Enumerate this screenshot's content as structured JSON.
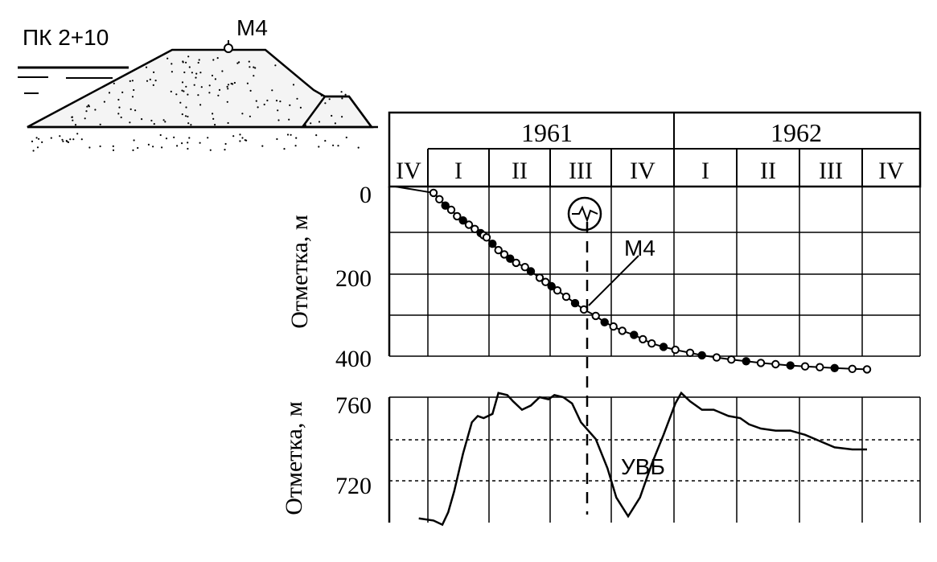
{
  "sketch": {
    "station_label": "ПК 2+10",
    "mark_label": "M4"
  },
  "chart_data": [
    {
      "type": "scatter",
      "title": "",
      "xlabel": "",
      "ylabel": "Отметка, м",
      "years": [
        "1961",
        "1962"
      ],
      "quarters": [
        "IV",
        "I",
        "II",
        "III",
        "IV",
        "I",
        "II",
        "III",
        "IV"
      ],
      "ylim": [
        400,
        0
      ],
      "yticks": [
        "0",
        "200",
        "400"
      ],
      "grid": true,
      "annotation": "M4",
      "series": [
        {
          "name": "M4",
          "x": [
            0.1,
            0.75,
            0.85,
            0.95,
            1.05,
            1.15,
            1.25,
            1.35,
            1.45,
            1.55,
            1.6,
            1.65,
            1.75,
            1.85,
            1.95,
            2.05,
            2.15,
            2.3,
            2.4,
            2.55,
            2.65,
            2.75,
            2.85,
            3.0,
            3.15,
            3.3,
            3.5,
            3.65,
            3.8,
            3.95,
            4.15,
            4.3,
            4.45,
            4.65,
            4.85,
            5.1,
            5.3,
            5.55,
            5.8,
            6.05,
            6.3,
            6.55,
            6.8,
            7.05,
            7.3,
            7.55,
            7.85,
            8.1
          ],
          "y": [
            0,
            15,
            30,
            45,
            55,
            70,
            80,
            90,
            100,
            110,
            115,
            120,
            135,
            150,
            160,
            170,
            180,
            190,
            200,
            215,
            225,
            235,
            245,
            260,
            275,
            290,
            305,
            320,
            330,
            340,
            350,
            360,
            370,
            378,
            385,
            392,
            398,
            403,
            408,
            412,
            416,
            419,
            422,
            424,
            426,
            428,
            430,
            431
          ]
        }
      ]
    },
    {
      "type": "line",
      "title": "",
      "xlabel": "",
      "ylabel": "Отметка, м",
      "ylim": [
        697,
        765
      ],
      "yticks": [
        "720",
        "760"
      ],
      "grid": true,
      "annotation": "УВБ",
      "series": [
        {
          "name": "УВБ",
          "x": [
            0.5,
            0.75,
            0.9,
            1.0,
            1.1,
            1.25,
            1.4,
            1.5,
            1.6,
            1.75,
            1.85,
            2.0,
            2.1,
            2.25,
            2.4,
            2.55,
            2.7,
            2.8,
            2.95,
            3.1,
            3.25,
            3.5,
            3.7,
            3.85,
            4.05,
            4.25,
            4.45,
            4.65,
            4.85,
            4.95,
            5.1,
            5.3,
            5.5,
            5.75,
            5.95,
            6.1,
            6.3,
            6.55,
            6.8,
            7.05,
            7.3,
            7.55,
            7.85,
            8.1
          ],
          "y": [
            702,
            701,
            699,
            705,
            715,
            733,
            748,
            751,
            750,
            752,
            762,
            761,
            758,
            754,
            756,
            760,
            759,
            761,
            760,
            757,
            748,
            740,
            726,
            712,
            703,
            712,
            728,
            742,
            757,
            762,
            758,
            754,
            754,
            751,
            750,
            747,
            745,
            744,
            744,
            742,
            739,
            736,
            735,
            735
          ]
        }
      ]
    }
  ]
}
